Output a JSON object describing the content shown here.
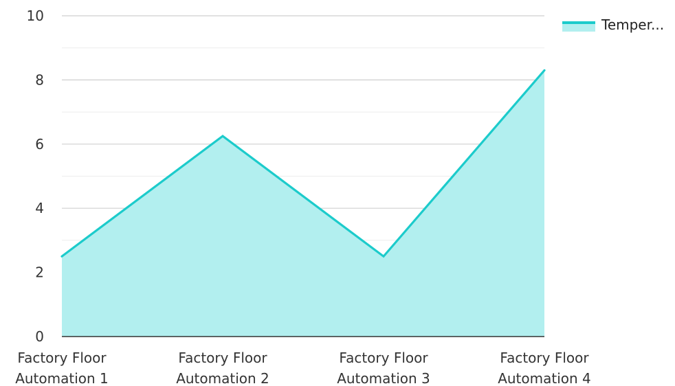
{
  "chart_data": {
    "type": "area",
    "categories": [
      [
        "Factory Floor",
        "Automation 1"
      ],
      [
        "Factory Floor",
        "Automation 2"
      ],
      [
        "Factory Floor",
        "Automation 3"
      ],
      [
        "Factory Floor",
        "Automation 4"
      ]
    ],
    "series": [
      {
        "name": "Temper...",
        "values": [
          2.5,
          6.25,
          2.5,
          8.3
        ],
        "line_color": "#1ccbcb",
        "fill_color": "#b2efef"
      }
    ],
    "yticks": [
      0,
      2,
      4,
      6,
      8,
      10
    ],
    "ylim": [
      0,
      10
    ],
    "grid": true,
    "legend_position": "top-right",
    "title": "",
    "xlabel": "",
    "ylabel": ""
  }
}
